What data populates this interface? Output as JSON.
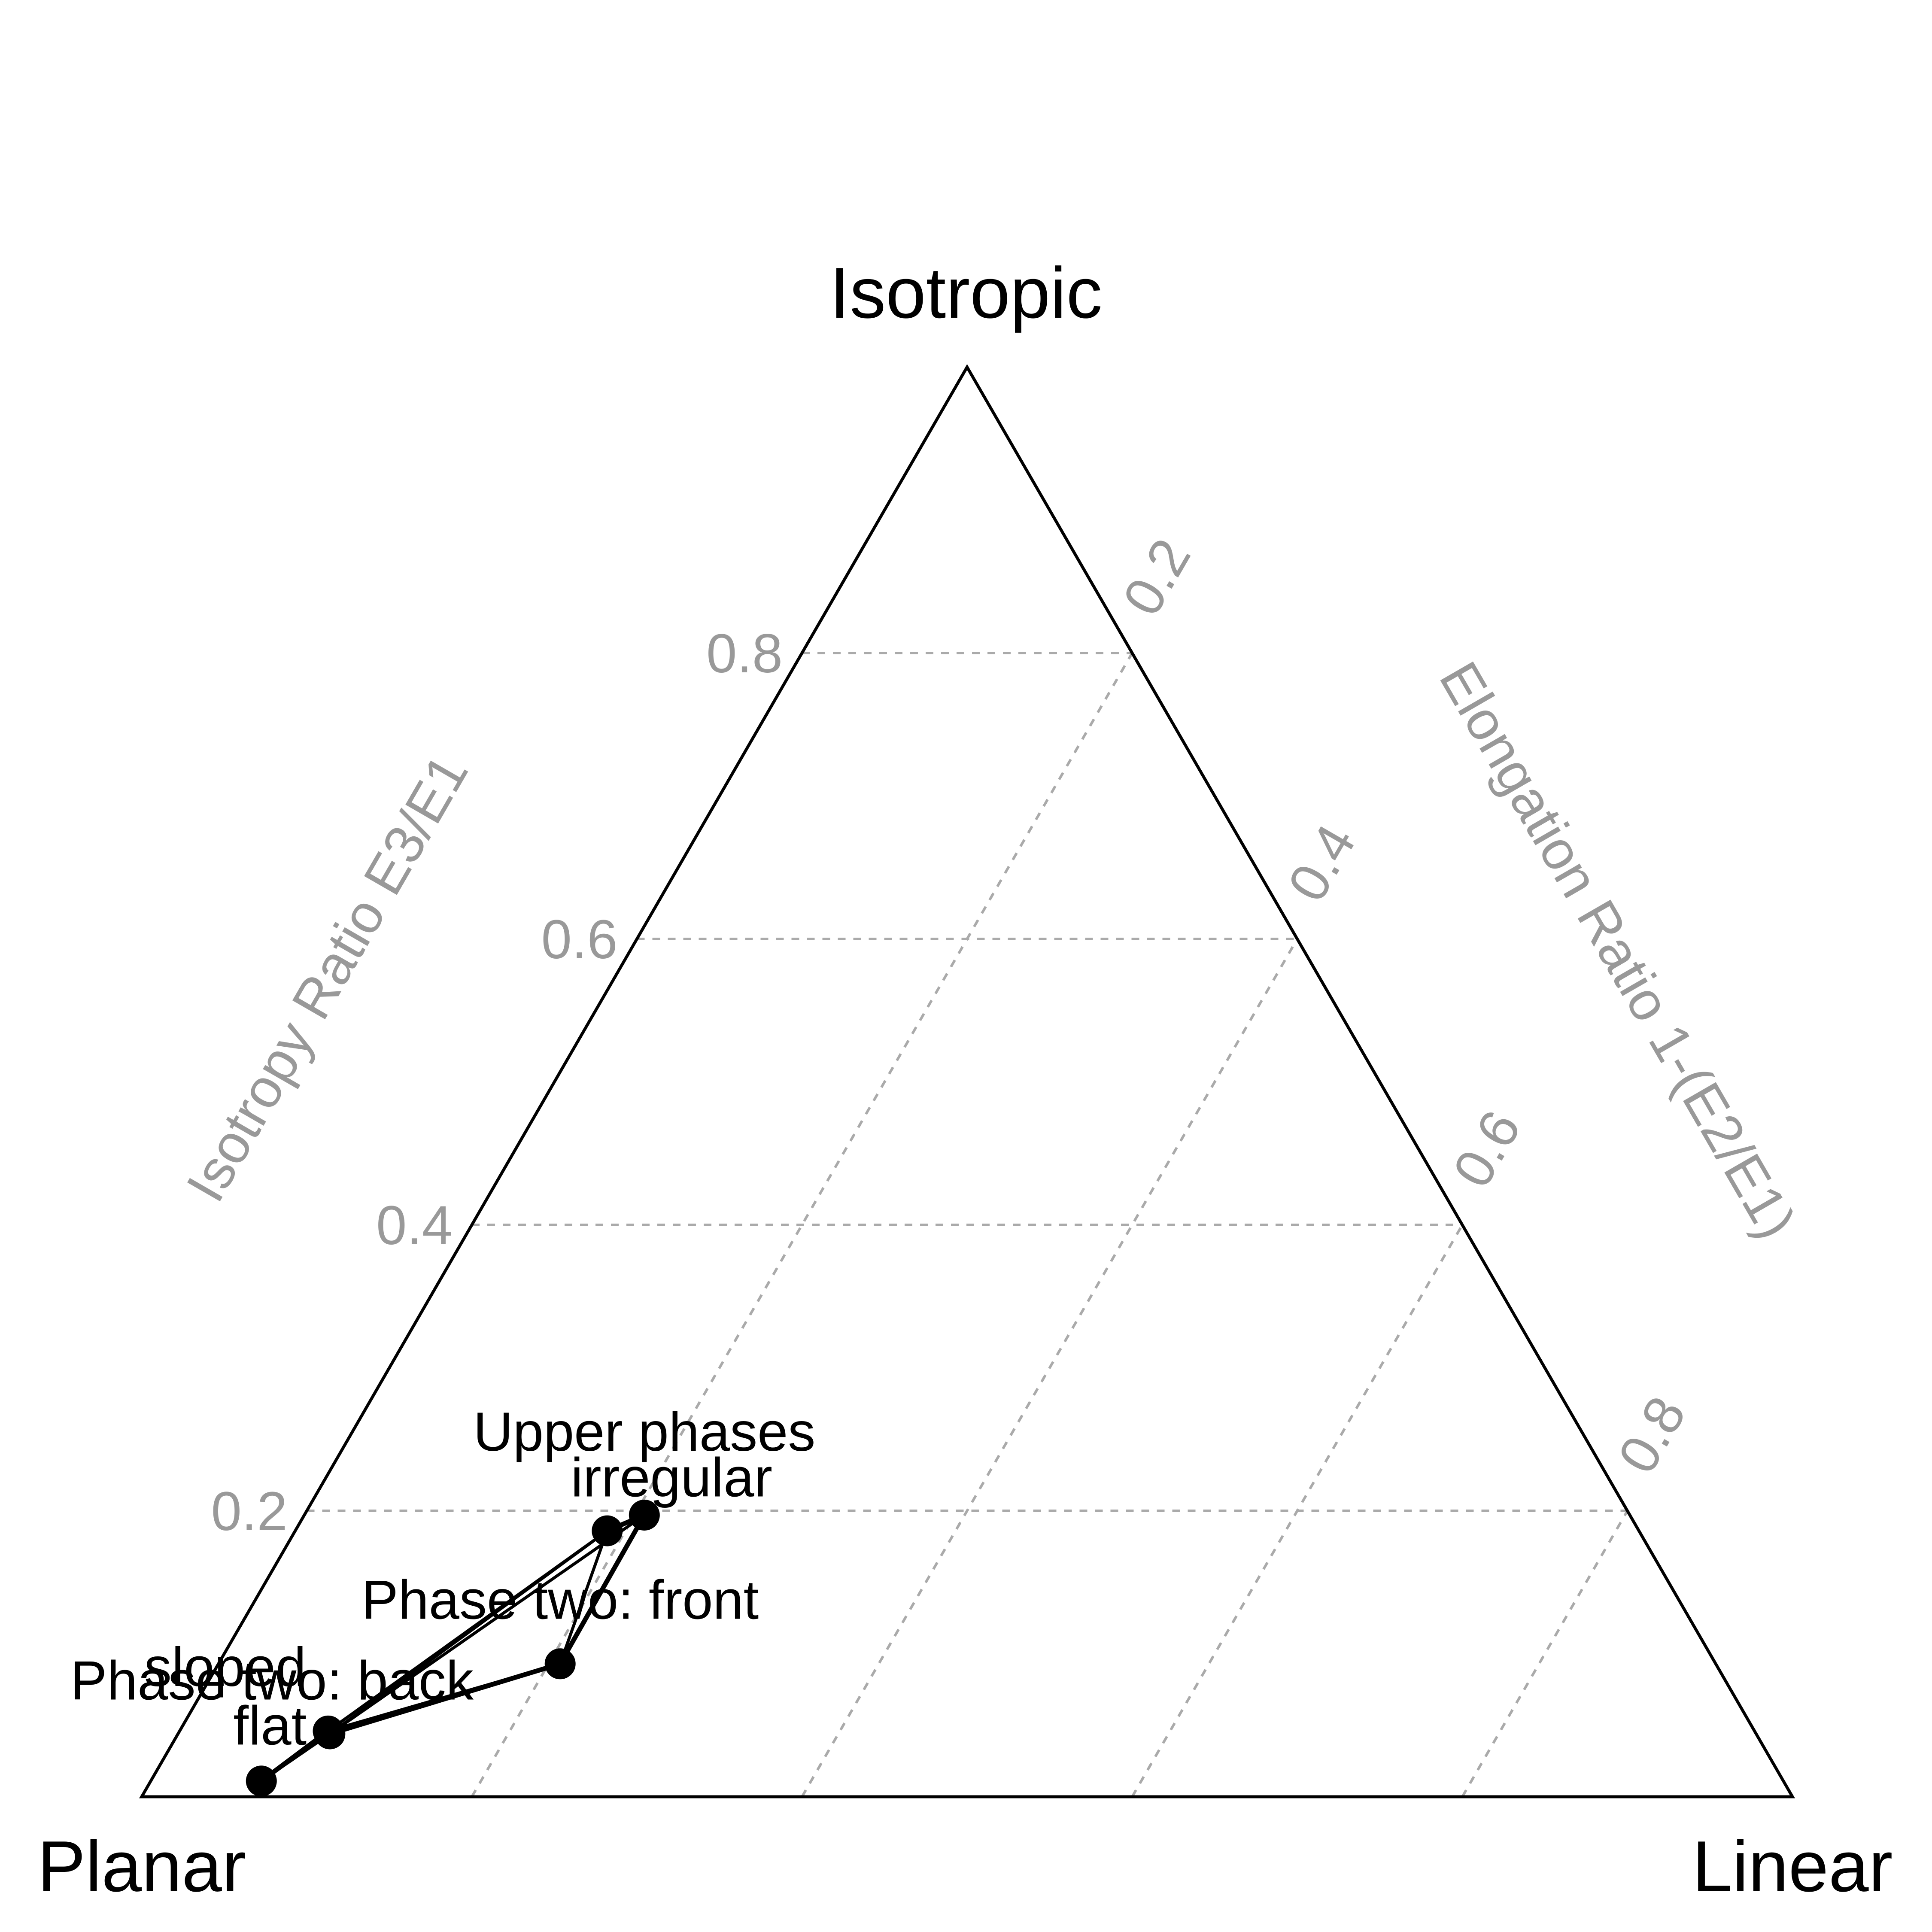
{
  "chart_data": {
    "type": "scatter",
    "subtype": "ternary",
    "vertices": {
      "top": "Isotropic",
      "left": "Planar",
      "right": "Linear"
    },
    "axes": {
      "left": {
        "title": "Isotropy Ratio E3/E1",
        "ticks": [
          "0.2",
          "0.4",
          "0.6",
          "0.8"
        ]
      },
      "right": {
        "title": "Elongation Ratio 1-(E2/E1)",
        "ticks": [
          "0.2",
          "0.4",
          "0.6",
          "0.8"
        ]
      }
    },
    "grid": true,
    "points": [
      {
        "label": "Upper phases",
        "isotropy": 0.197,
        "elongation": 0.206
      },
      {
        "label": "irregular",
        "isotropy": 0.186,
        "elongation": 0.189
      },
      {
        "label": "Phase two: front",
        "isotropy": 0.093,
        "elongation": 0.207
      },
      {
        "label": "sloped",
        "isotropy": 0.046,
        "elongation": 0.09
      },
      {
        "label": "Phase two: back",
        "isotropy": 0.044,
        "elongation": 0.092
      },
      {
        "label": "flat",
        "isotropy": 0.011,
        "elongation": 0.067
      }
    ],
    "connections": [
      [
        0,
        1
      ],
      [
        1,
        2
      ],
      [
        2,
        3
      ],
      [
        3,
        5
      ],
      [
        5,
        4
      ],
      [
        4,
        0
      ],
      [
        0,
        2
      ],
      [
        1,
        4
      ],
      [
        1,
        3
      ],
      [
        2,
        4
      ]
    ]
  }
}
